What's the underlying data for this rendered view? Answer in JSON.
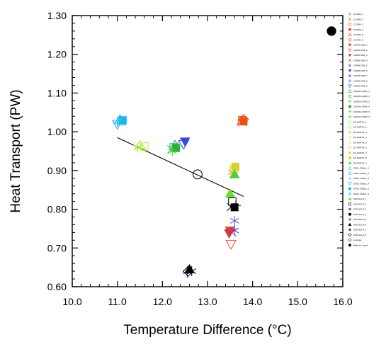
{
  "chart_data": {
    "type": "scatter",
    "title": "",
    "xlabel": "Temperature Difference (°C)",
    "ylabel": "Heat Transport (PW)",
    "xlim": [
      10.0,
      16.0
    ],
    "ylim": [
      0.6,
      1.3
    ],
    "xticks": [
      "10.0",
      "11.0",
      "12.0",
      "13.0",
      "14.0",
      "15.0",
      "16.0"
    ],
    "yticks": [
      "0.60",
      "0.70",
      "0.80",
      "0.90",
      "1.00",
      "1.10",
      "1.20",
      "1.30"
    ],
    "grid": false,
    "legend_position": "right",
    "regression_line": {
      "x": [
        11.0,
        13.8
      ],
      "y": [
        0.985,
        0.833
      ]
    },
    "series": [
      {
        "name": "CCSM4_1",
        "color": "#e8501c",
        "marker": "plus",
        "points": [
          [
            13.78,
            1.03
          ]
        ]
      },
      {
        "name": "CCSM4_2",
        "color": "#e8501c",
        "marker": "cross",
        "points": [
          [
            13.78,
            1.025
          ]
        ]
      },
      {
        "name": "CCSM4_3",
        "color": "#e8501c",
        "marker": "square",
        "points": [
          [
            13.77,
            1.03
          ]
        ]
      },
      {
        "name": "CCSM4_4",
        "color": "#e8501c",
        "marker": "square-filled",
        "points": [
          [
            13.8,
            1.028
          ]
        ]
      },
      {
        "name": "CCSM4_5",
        "color": "#e8501c",
        "marker": "triangle",
        "points": [
          [
            13.76,
            1.027
          ]
        ]
      },
      {
        "name": "CCSM4_6",
        "color": "#e8501c",
        "marker": "diamond",
        "points": [
          [
            13.8,
            1.032
          ]
        ]
      },
      {
        "name": "CNRM-CM5_1",
        "color": "#e8423a",
        "marker": "triangle-down-filled",
        "points": [
          [
            13.5,
            0.745
          ]
        ]
      },
      {
        "name": "CNRM-CM5_2",
        "color": "#ef4b2f",
        "marker": "triangle-down",
        "points": [
          [
            13.52,
            0.71
          ]
        ]
      },
      {
        "name": "CNRM-CM5_3",
        "color": "#d63b3b",
        "marker": "triangle-down-filled",
        "points": [
          [
            13.48,
            0.738
          ]
        ]
      },
      {
        "name": "CNRM-CM5_4",
        "color": "#c83a4f",
        "marker": "cross",
        "points": [
          [
            13.55,
            0.74
          ]
        ]
      },
      {
        "name": "CNRM-CM5_5",
        "color": "#7040c8",
        "marker": "asterisk",
        "points": [
          [
            13.6,
            0.77
          ]
        ]
      },
      {
        "name": "CNRM-CM5_6",
        "color": "#3a48d8",
        "marker": "triangle-down-filled",
        "points": [
          [
            12.5,
            0.975
          ]
        ]
      },
      {
        "name": "CNRM-CM5_7",
        "color": "#5040d0",
        "marker": "asterisk",
        "points": [
          [
            13.6,
            0.745
          ]
        ]
      },
      {
        "name": "CNRM-CM5_8",
        "color": "#2a2ac8",
        "marker": "plus",
        "points": [
          [
            12.55,
            0.635
          ]
        ]
      },
      {
        "name": "CNRM-CM5_9",
        "color": "#2850e0",
        "marker": "triangle-down",
        "points": [
          [
            12.47,
            0.968
          ]
        ]
      },
      {
        "name": "CESM1-CAM5_1",
        "color": "#20a050",
        "marker": "triangle",
        "points": [
          [
            12.28,
            0.965
          ]
        ]
      },
      {
        "name": "CESM1-CAM5_2",
        "color": "#22b050",
        "marker": "square",
        "points": [
          [
            12.25,
            0.96
          ]
        ]
      },
      {
        "name": "CESM1-CAM5_3",
        "color": "#30c030",
        "marker": "cross",
        "points": [
          [
            12.2,
            0.955
          ]
        ]
      },
      {
        "name": "CESM1-CAM5_4",
        "color": "#2aa838",
        "marker": "square-filled",
        "points": [
          [
            12.3,
            0.958
          ]
        ]
      },
      {
        "name": "CESM1-CAM5_5",
        "color": "#3cc048",
        "marker": "plus",
        "points": [
          [
            12.35,
            0.962
          ]
        ]
      },
      {
        "name": "CESM1-CAM5_6",
        "color": "#44d040",
        "marker": "asterisk",
        "points": [
          [
            12.22,
            0.95
          ]
        ]
      },
      {
        "name": "EC-EARTH_1",
        "color": "#a8f03c",
        "marker": "triangle",
        "points": [
          [
            11.5,
            0.965
          ]
        ]
      },
      {
        "name": "EC-EARTH_2",
        "color": "#b0f040",
        "marker": "square",
        "points": [
          [
            11.6,
            0.962
          ]
        ]
      },
      {
        "name": "EC-EARTH_3",
        "color": "#9ae830",
        "marker": "asterisk",
        "points": [
          [
            11.45,
            0.96
          ]
        ]
      },
      {
        "name": "EC-EARTH_4",
        "color": "#c0f050",
        "marker": "plus",
        "points": [
          [
            11.55,
            0.958
          ]
        ]
      },
      {
        "name": "EC-EARTH_5",
        "color": "#e0e040",
        "marker": "square",
        "points": [
          [
            13.6,
            0.905
          ]
        ]
      },
      {
        "name": "EC-EARTH_6",
        "color": "#f0c838",
        "marker": "square",
        "points": [
          [
            13.58,
            0.9
          ]
        ]
      },
      {
        "name": "EC-EARTH_7",
        "color": "#e8b020",
        "marker": "asterisk",
        "points": [
          [
            13.55,
            0.895
          ]
        ]
      },
      {
        "name": "EC-EARTH_8",
        "color": "#d8d030",
        "marker": "square-filled",
        "points": [
          [
            13.62,
            0.91
          ]
        ]
      },
      {
        "name": "EC-EARTH_9",
        "color": "#50d040",
        "marker": "triangle-filled",
        "points": [
          [
            13.6,
            0.89
          ]
        ]
      },
      {
        "name": "GFDL-CM2p1_1",
        "color": "#1ac8e8",
        "marker": "triangle",
        "points": [
          [
            11.05,
            1.03
          ]
        ]
      },
      {
        "name": "GFDL-CM2p1_2",
        "color": "#10b8e0",
        "marker": "square",
        "points": [
          [
            11.1,
            1.027
          ]
        ]
      },
      {
        "name": "GFDL-CM2p1_3",
        "color": "#20c0f0",
        "marker": "plus",
        "points": [
          [
            11.0,
            1.025
          ]
        ]
      },
      {
        "name": "GFDL-CM2p1_4",
        "color": "#30a8e8",
        "marker": "triangle-down",
        "points": [
          [
            11.0,
            1.02
          ]
        ]
      },
      {
        "name": "GFDL-CM2p1_5",
        "color": "#18b0f0",
        "marker": "square-filled",
        "points": [
          [
            11.12,
            1.03
          ]
        ]
      },
      {
        "name": "GFDL-CM2p1_6",
        "color": "#28c8d8",
        "marker": "asterisk",
        "points": [
          [
            11.08,
            1.032
          ]
        ]
      },
      {
        "name": "GISS-E2-R_1",
        "color": "#60e030",
        "marker": "triangle-filled",
        "points": [
          [
            13.5,
            0.84
          ]
        ]
      },
      {
        "name": "GISS-E2-R_2",
        "color": "#000000",
        "marker": "square",
        "points": [
          [
            13.55,
            0.82
          ]
        ]
      },
      {
        "name": "GISS-E2-R_3",
        "color": "#000000",
        "marker": "cross",
        "points": [
          [
            13.52,
            0.806
          ]
        ]
      },
      {
        "name": "GISS-E2-R_4",
        "color": "#000000",
        "marker": "square-filled",
        "points": [
          [
            13.6,
            0.805
          ]
        ]
      },
      {
        "name": "GISS-E2-R_5",
        "color": "#000000",
        "marker": "plus",
        "points": [
          [
            13.63,
            0.81
          ]
        ]
      },
      {
        "name": "GISS-E2-R_6",
        "color": "#000000",
        "marker": "triangle-filled",
        "points": [
          [
            12.6,
            0.645
          ]
        ]
      },
      {
        "name": "GISS-E2-R_7",
        "color": "#000000",
        "marker": "asterisk",
        "points": [
          [
            12.65,
            0.64
          ]
        ]
      },
      {
        "name": "GISS-E2-R_8",
        "color": "#000000",
        "marker": "diamond",
        "points": [
          [
            12.57,
            0.64
          ]
        ]
      },
      {
        "name": "Average",
        "color": "#000000",
        "marker": "circle",
        "points": [
          [
            12.78,
            0.89
          ]
        ]
      },
      {
        "name": "High-res model",
        "color": "#000000",
        "marker": "circle-filled",
        "points": [
          [
            15.75,
            1.26
          ]
        ]
      }
    ]
  }
}
